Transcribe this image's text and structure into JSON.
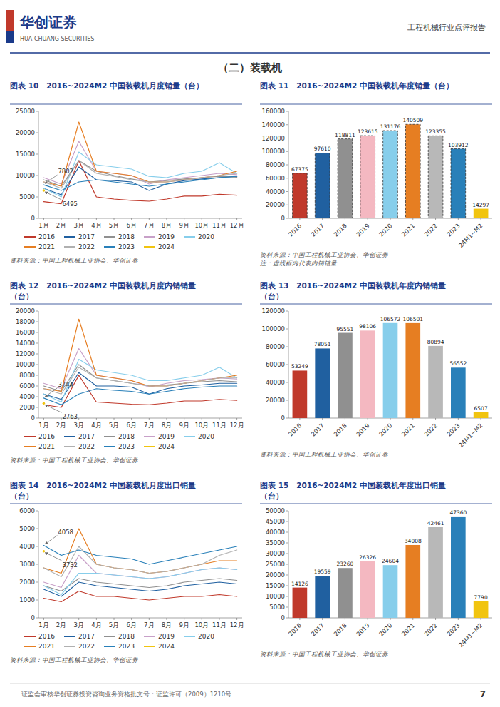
{
  "title": "（二）装载机",
  "annotations": [
    {
      "text": "华创证券"
    },
    {
      "text": "HUA CHUANG SECURITIES"
    },
    {
      "text": "工程机械行业点评报告"
    },
    {
      "text": "证监会审核华创证券投资咨询业务资格批文号：证监许可（2009）1210号"
    },
    {
      "text": "7"
    }
  ],
  "chart_data": [
    {
      "type": "line",
      "title": "图表 10   2016~2024M2 中国装载机月度销量（台）",
      "categories": [
        "1月",
        "2月",
        "3月",
        "4月",
        "5月",
        "6月",
        "7月",
        "8月",
        "9月",
        "10月",
        "11月",
        "12月"
      ],
      "ylim": [
        0,
        25000
      ],
      "yticks": [
        0,
        5000,
        10000,
        15000,
        20000,
        25000
      ],
      "grid": false,
      "legend": "bottom",
      "series": [
        {
          "name": "2016",
          "color": "#c0392b",
          "values": [
            3900,
            3400,
            13500,
            5000,
            4500,
            4200,
            4000,
            4500,
            5200,
            5200,
            5600,
            5400
          ]
        },
        {
          "name": "2017",
          "color": "#2060a0",
          "values": [
            7000,
            5500,
            12000,
            9000,
            8800,
            8500,
            6500,
            8000,
            8800,
            9200,
            9500,
            9800
          ]
        },
        {
          "name": "2018",
          "color": "#909090",
          "values": [
            9000,
            7500,
            13500,
            11000,
            10000,
            9200,
            8500,
            8800,
            9200,
            9500,
            9800,
            9600
          ]
        },
        {
          "name": "2019",
          "color": "#c8a0c8",
          "values": [
            9500,
            8000,
            18000,
            11000,
            10500,
            10000,
            8000,
            9000,
            9500,
            10000,
            10500,
            10200
          ]
        },
        {
          "name": "2020",
          "color": "#87ceeb",
          "values": [
            7000,
            5000,
            15500,
            12500,
            12000,
            11500,
            9800,
            9500,
            10500,
            11000,
            13000,
            10500
          ]
        },
        {
          "name": "2021",
          "color": "#e67e22",
          "values": [
            8500,
            7500,
            22500,
            11000,
            10500,
            10000,
            8500,
            8500,
            9000,
            9500,
            10000,
            11000
          ]
        },
        {
          "name": "2022",
          "color": "#b0b0b0",
          "values": [
            8500,
            7000,
            13500,
            10500,
            9800,
            9000,
            8500,
            8500,
            9000,
            9500,
            10000,
            10500
          ]
        },
        {
          "name": "2023",
          "color": "#2980b9",
          "values": [
            7802,
            6500,
            8500,
            9000,
            8500,
            8000,
            7500,
            8000,
            8500,
            9000,
            9500,
            9800
          ]
        },
        {
          "name": "2024",
          "color": "#f1c40f",
          "values": [
            6495,
            null,
            null,
            null,
            null,
            null,
            null,
            null,
            null,
            null,
            null,
            null
          ]
        }
      ],
      "annotations": [
        {
          "text": "7802",
          "x": "1月",
          "y": 7802
        },
        {
          "text": "6495",
          "x": "1月",
          "y": 6495
        },
        {
          "text": "资料来源：中国工程机械工业协会、华创证券"
        }
      ]
    },
    {
      "type": "bar",
      "title": "图表 11   2016~2024M2 中国装载机年度销量（台）",
      "categories": [
        "2016",
        "2017",
        "2018",
        "2019",
        "2020",
        "2021",
        "2022",
        "2023",
        "24M1~M2"
      ],
      "values": [
        67375,
        97610,
        118811,
        123615,
        131176,
        140509,
        123355,
        103912,
        14297
      ],
      "colors": [
        "#c0392b",
        "#2060a0",
        "#909090",
        "#f4b8c1",
        "#87ceeb",
        "#e67e22",
        "#b8b8b8",
        "#2980b9",
        "#f1c40f"
      ],
      "line_style": [
        "dashed",
        "dashed",
        "dashed",
        "dashed",
        "dashed",
        "dashed",
        "dashed",
        "dashed",
        "solid"
      ],
      "ylim": [
        0,
        160000
      ],
      "yticks": [
        0,
        20000,
        40000,
        60000,
        80000,
        100000,
        120000,
        140000,
        160000
      ],
      "grid": false,
      "data_labels": true,
      "annotations": [
        {
          "text": "资料来源：中国工程机械工业协会、华创证券"
        },
        {
          "text": "注：虚线框内代表内销销量"
        }
      ]
    },
    {
      "type": "line",
      "title": "图表 12   2016~2024M2 中国装载机月度内销销量",
      "subtitle": "（台）",
      "categories": [
        "1月",
        "2月",
        "3月",
        "4月",
        "5月",
        "6月",
        "7月",
        "8月",
        "9月",
        "10月",
        "11月",
        "12月"
      ],
      "ylim": [
        0,
        20000
      ],
      "yticks": [
        0,
        2000,
        4000,
        6000,
        8000,
        10000,
        12000,
        14000,
        16000,
        18000,
        20000
      ],
      "grid": false,
      "legend": "bottom",
      "series": [
        {
          "name": "2016",
          "color": "#c0392b",
          "values": [
            2500,
            2000,
            8000,
            3000,
            2800,
            2600,
            2500,
            2800,
            3200,
            3200,
            3500,
            3300
          ]
        },
        {
          "name": "2017",
          "color": "#2060a0",
          "values": [
            4500,
            3500,
            8500,
            6000,
            6000,
            5800,
            4500,
            5500,
            6000,
            6200,
            6500,
            6500
          ]
        },
        {
          "name": "2018",
          "color": "#909090",
          "values": [
            6000,
            5000,
            10000,
            7500,
            7000,
            6500,
            6000,
            6200,
            6500,
            6800,
            7000,
            6800
          ]
        },
        {
          "name": "2019",
          "color": "#c8a0c8",
          "values": [
            6500,
            5500,
            13000,
            8000,
            7500,
            7000,
            5800,
            6500,
            7000,
            7200,
            7500,
            7300
          ]
        },
        {
          "name": "2020",
          "color": "#87ceeb",
          "values": [
            4500,
            3000,
            11000,
            9000,
            8500,
            8000,
            7000,
            7000,
            7500,
            8000,
            9500,
            7500
          ]
        },
        {
          "name": "2021",
          "color": "#e67e22",
          "values": [
            5500,
            5000,
            18500,
            8000,
            7500,
            7000,
            6000,
            6000,
            6500,
            7000,
            7500,
            8000
          ]
        },
        {
          "name": "2022",
          "color": "#b0b0b0",
          "values": [
            5500,
            4500,
            9500,
            7500,
            7000,
            6500,
            6000,
            6000,
            6500,
            7000,
            7500,
            7500
          ]
        },
        {
          "name": "2023",
          "color": "#2980b9",
          "values": [
            3744,
            2500,
            4500,
            5500,
            5200,
            5000,
            4500,
            5000,
            5500,
            5800,
            6000,
            6000
          ]
        },
        {
          "name": "2024",
          "color": "#f1c40f",
          "values": [
            2763,
            null,
            null,
            null,
            null,
            null,
            null,
            null,
            null,
            null,
            null,
            null
          ]
        }
      ],
      "annotations": [
        {
          "text": "3744",
          "x": "1月",
          "y": 3744
        },
        {
          "text": "2763",
          "x": "1月",
          "y": 2763
        },
        {
          "text": "资料来源：中国工程机械工业协会、华创证券"
        }
      ]
    },
    {
      "type": "bar",
      "title": "图表 13   2016~2024M2 中国装载机年度内销销量",
      "subtitle": "（台）",
      "categories": [
        "2016",
        "2017",
        "2018",
        "2019",
        "2020",
        "2021",
        "2022",
        "2023",
        "24M1~M2"
      ],
      "values": [
        53249,
        78051,
        95551,
        98106,
        106572,
        106501,
        80894,
        56552,
        6507
      ],
      "colors": [
        "#c0392b",
        "#2060a0",
        "#909090",
        "#f4b8c1",
        "#87ceeb",
        "#e67e22",
        "#b8b8b8",
        "#2980b9",
        "#f1c40f"
      ],
      "ylim": [
        0,
        120000
      ],
      "yticks": [
        0,
        20000,
        40000,
        60000,
        80000,
        100000,
        120000
      ],
      "grid": false,
      "data_labels": true,
      "annotations": [
        {
          "text": "资料来源：中国工程机械工业协会、华创证券"
        }
      ]
    },
    {
      "type": "line",
      "title": "图表 14   2016~2024M2 中国装载机月度出口销量",
      "subtitle": "（台）",
      "categories": [
        "1月",
        "2月",
        "3月",
        "4月",
        "5月",
        "6月",
        "7月",
        "8月",
        "9月",
        "10月",
        "11月",
        "12月"
      ],
      "ylim": [
        0,
        6000
      ],
      "yticks": [
        0,
        1000,
        2000,
        3000,
        4000,
        5000,
        6000
      ],
      "grid": false,
      "legend": "bottom",
      "series": [
        {
          "name": "2016",
          "color": "#c0392b",
          "values": [
            1100,
            900,
            1500,
            1200,
            1200,
            1100,
            1000,
            1100,
            1200,
            1200,
            1300,
            1200
          ]
        },
        {
          "name": "2017",
          "color": "#2060a0",
          "values": [
            1600,
            1200,
            2000,
            1800,
            1700,
            1600,
            1500,
            1600,
            1800,
            1900,
            2000,
            1900
          ]
        },
        {
          "name": "2018",
          "color": "#909090",
          "values": [
            1800,
            1500,
            2200,
            2000,
            1900,
            1800,
            1700,
            1800,
            2000,
            2100,
            2200,
            2100
          ]
        },
        {
          "name": "2019",
          "color": "#c8a0c8",
          "values": [
            2000,
            1700,
            3500,
            2500,
            2400,
            2300,
            2200,
            2300,
            2500,
            2700,
            2800,
            2700
          ]
        },
        {
          "name": "2020",
          "color": "#87ceeb",
          "values": [
            1800,
            1300,
            2500,
            2500,
            2400,
            2300,
            2200,
            2300,
            2500,
            2700,
            2800,
            2700
          ]
        },
        {
          "name": "2021",
          "color": "#e67e22",
          "values": [
            2800,
            2500,
            5000,
            3000,
            2800,
            2700,
            2500,
            2600,
            2800,
            3000,
            3200,
            3200
          ]
        },
        {
          "name": "2022",
          "color": "#b0b0b0",
          "values": [
            2800,
            2300,
            4000,
            3000,
            2800,
            2700,
            2500,
            2600,
            2800,
            3000,
            3500,
            3800
          ]
        },
        {
          "name": "2023",
          "color": "#2980b9",
          "values": [
            4058,
            3500,
            3800,
            3500,
            3400,
            3300,
            3000,
            3200,
            3400,
            3600,
            3800,
            4000
          ]
        },
        {
          "name": "2024",
          "color": "#f1c40f",
          "values": [
            3732,
            null,
            null,
            null,
            null,
            null,
            null,
            null,
            null,
            null,
            null,
            null
          ]
        }
      ],
      "annotations": [
        {
          "text": "4058",
          "x": "1月",
          "y": 4058
        },
        {
          "text": "3732",
          "x": "1月",
          "y": 3732
        },
        {
          "text": "资料来源：中国工程机械工业协会、华创证券"
        }
      ]
    },
    {
      "type": "bar",
      "title": "图表 15   2016~2024M2 中国装载机年度出口销量",
      "subtitle": "（台）",
      "categories": [
        "2016",
        "2017",
        "2018",
        "2019",
        "2020",
        "2021",
        "2022",
        "2023",
        "24M1~M2"
      ],
      "values": [
        14126,
        19559,
        23260,
        26326,
        24604,
        34008,
        42461,
        47360,
        7790
      ],
      "colors": [
        "#c0392b",
        "#2060a0",
        "#909090",
        "#f4b8c1",
        "#87ceeb",
        "#e67e22",
        "#b8b8b8",
        "#2980b9",
        "#f1c40f"
      ],
      "ylim": [
        0,
        50000
      ],
      "yticks": [
        0,
        5000,
        10000,
        15000,
        20000,
        25000,
        30000,
        35000,
        40000,
        45000,
        50000
      ],
      "grid": false,
      "data_labels": true,
      "annotations": [
        {
          "text": "资料来源：中国工程机械工业协会、华创证券"
        }
      ]
    }
  ]
}
